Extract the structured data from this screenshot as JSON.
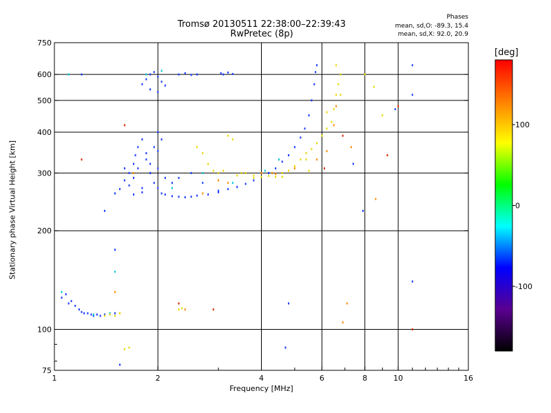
{
  "plot": {
    "title_line1": "Tromsø 20130511 22:38:00–22:39:43",
    "title_line2": "RwPretec (8p)",
    "phase_heading": "Phases",
    "phase_o": "mean, sd,O: -89.3, 15.4",
    "phase_x": "mean, sd,X:  92.0, 20.9",
    "colorbar_unit": "[deg]"
  },
  "chart_data": {
    "type": "scatter",
    "title": "Tromsø 20130511 22:38:00–22:39:43",
    "subtitle": "RwPretec (8p)",
    "xlabel": "Frequency [MHz]",
    "ylabel": "Stationary phase Virtual Height [km]",
    "x_scale": "log",
    "y_scale": "log",
    "xlim": [
      1,
      16
    ],
    "ylim": [
      75,
      750
    ],
    "x_ticks": [
      1,
      2,
      4,
      6,
      8,
      10,
      16
    ],
    "x_tick_labels": [
      "1",
      "2",
      "4",
      "6",
      "8",
      "10",
      "16"
    ],
    "y_ticks": [
      75,
      100,
      200,
      300,
      400,
      500,
      600,
      750
    ],
    "y_tick_labels": [
      "75",
      "100",
      "200",
      "300",
      "400",
      "500",
      "600",
      "750"
    ],
    "x_grid": [
      2,
      4,
      6,
      8,
      10
    ],
    "y_grid": [
      100,
      200,
      300,
      400,
      500,
      600
    ],
    "x_minor_ticks": [
      3,
      5,
      7,
      9,
      11,
      12,
      13,
      14,
      15
    ],
    "y_minor_ticks": [
      80,
      90
    ],
    "colorbar": {
      "label": "[deg]",
      "range": [
        -180,
        180
      ],
      "ticks": [
        100,
        0,
        -100
      ],
      "tick_labels": [
        "100",
        "0",
        "-100"
      ],
      "colors": [
        "#000000",
        "#5a0090",
        "#0000ff",
        "#00ffff",
        "#00ff00",
        "#ffff00",
        "#ff8000",
        "#ff0000"
      ]
    },
    "series": [
      {
        "color": "#1a3cff",
        "values": [
          [
            1.05,
            125
          ],
          [
            1.08,
            128
          ],
          [
            1.1,
            120
          ],
          [
            1.12,
            122
          ],
          [
            1.15,
            118
          ],
          [
            1.18,
            115
          ],
          [
            1.2,
            113
          ],
          [
            1.22,
            112
          ],
          [
            1.25,
            112
          ],
          [
            1.28,
            111
          ],
          [
            1.3,
            110
          ],
          [
            1.33,
            111
          ],
          [
            1.36,
            110
          ],
          [
            1.4,
            111
          ],
          [
            1.45,
            111
          ],
          [
            1.5,
            112
          ],
          [
            1.55,
            112
          ],
          [
            1.5,
            260
          ],
          [
            1.55,
            268
          ],
          [
            1.6,
            285
          ],
          [
            1.65,
            300
          ],
          [
            1.7,
            320
          ],
          [
            1.72,
            340
          ],
          [
            1.75,
            360
          ],
          [
            1.8,
            380
          ],
          [
            1.85,
            330
          ],
          [
            1.9,
            300
          ],
          [
            1.95,
            280
          ],
          [
            2.0,
            270
          ],
          [
            2.05,
            260
          ],
          [
            2.1,
            258
          ],
          [
            2.2,
            255
          ],
          [
            2.3,
            254
          ],
          [
            2.4,
            253
          ],
          [
            2.5,
            254
          ],
          [
            2.6,
            256
          ],
          [
            2.8,
            258
          ],
          [
            3.0,
            262
          ],
          [
            1.6,
            310
          ],
          [
            1.7,
            290
          ],
          [
            1.8,
            270
          ],
          [
            1.9,
            320
          ],
          [
            2.0,
            350
          ],
          [
            2.0,
            400
          ],
          [
            2.05,
            380
          ],
          [
            1.95,
            360
          ],
          [
            1.85,
            345
          ],
          [
            1.75,
            310
          ],
          [
            1.65,
            275
          ],
          [
            1.7,
            258
          ],
          [
            1.8,
            262
          ],
          [
            1.9,
            300
          ],
          [
            2.0,
            310
          ],
          [
            2.1,
            290
          ],
          [
            2.2,
            280
          ],
          [
            2.3,
            290
          ],
          [
            2.5,
            300
          ],
          [
            2.7,
            280
          ],
          [
            1.8,
            560
          ],
          [
            1.85,
            580
          ],
          [
            1.9,
            600
          ],
          [
            1.95,
            610
          ],
          [
            2.0,
            590
          ],
          [
            2.05,
            570
          ],
          [
            2.1,
            555
          ],
          [
            1.9,
            540
          ],
          [
            2.0,
            530
          ],
          [
            2.3,
            600
          ],
          [
            2.4,
            605
          ],
          [
            2.5,
            598
          ],
          [
            2.6,
            600
          ],
          [
            3.05,
            605
          ],
          [
            3.1,
            600
          ],
          [
            3.2,
            608
          ],
          [
            3.3,
            602
          ],
          [
            3.0,
            265
          ],
          [
            3.2,
            268
          ],
          [
            3.4,
            272
          ],
          [
            3.6,
            278
          ],
          [
            3.8,
            285
          ],
          [
            4.0,
            292
          ],
          [
            4.2,
            300
          ],
          [
            4.4,
            310
          ],
          [
            4.6,
            325
          ],
          [
            4.8,
            340
          ],
          [
            5.0,
            360
          ],
          [
            5.2,
            385
          ],
          [
            5.35,
            410
          ],
          [
            5.5,
            450
          ],
          [
            5.6,
            500
          ],
          [
            5.7,
            560
          ],
          [
            5.75,
            610
          ],
          [
            5.8,
            640
          ],
          [
            1.2,
            600
          ],
          [
            1.4,
            230
          ],
          [
            1.5,
            175
          ],
          [
            1.55,
            78
          ],
          [
            4.2,
            300
          ],
          [
            4.8,
            120
          ],
          [
            4.7,
            88
          ],
          [
            7.4,
            320
          ],
          [
            7.9,
            230
          ],
          [
            9.8,
            470
          ],
          [
            11.0,
            140
          ],
          [
            11.0,
            640
          ],
          [
            11.0,
            520
          ]
        ]
      },
      {
        "color": "#00c8d8",
        "values": [
          [
            1.05,
            130
          ],
          [
            1.3,
            111
          ],
          [
            1.45,
            112
          ],
          [
            2.2,
            270
          ],
          [
            2.7,
            300
          ],
          [
            3.3,
            280
          ],
          [
            4.1,
            305
          ],
          [
            4.5,
            330
          ],
          [
            1.85,
            600
          ],
          [
            2.05,
            615
          ],
          [
            1.1,
            600
          ],
          [
            1.5,
            150
          ]
        ]
      },
      {
        "color": "#e8d800",
        "values": [
          [
            1.4,
            110
          ],
          [
            1.45,
            111
          ],
          [
            1.5,
            110
          ],
          [
            1.55,
            112
          ],
          [
            2.3,
            115
          ],
          [
            2.35,
            116
          ],
          [
            1.6,
            87
          ],
          [
            1.65,
            88
          ],
          [
            2.6,
            360
          ],
          [
            2.7,
            345
          ],
          [
            2.8,
            320
          ],
          [
            2.9,
            305
          ],
          [
            3.0,
            300
          ],
          [
            3.1,
            305
          ],
          [
            3.2,
            390
          ],
          [
            3.3,
            380
          ],
          [
            3.4,
            295
          ],
          [
            3.6,
            300
          ],
          [
            3.8,
            295
          ],
          [
            4.0,
            292
          ],
          [
            4.2,
            294
          ],
          [
            4.4,
            292
          ],
          [
            4.6,
            300
          ],
          [
            4.8,
            305
          ],
          [
            5.0,
            315
          ],
          [
            5.2,
            330
          ],
          [
            5.4,
            345
          ],
          [
            5.6,
            355
          ],
          [
            5.8,
            370
          ],
          [
            6.0,
            390
          ],
          [
            6.2,
            410
          ],
          [
            6.4,
            430
          ],
          [
            6.5,
            470
          ],
          [
            6.6,
            520
          ],
          [
            6.7,
            560
          ],
          [
            6.8,
            600
          ],
          [
            6.6,
            640
          ],
          [
            3.5,
            300
          ],
          [
            3.8,
            290
          ],
          [
            4.6,
            292
          ],
          [
            5.4,
            330
          ],
          [
            6.2,
            460
          ],
          [
            8.0,
            600
          ],
          [
            8.5,
            550
          ],
          [
            9.0,
            450
          ],
          [
            5.5,
            305
          ],
          [
            6.8,
            520
          ]
        ]
      },
      {
        "color": "#ff8c00",
        "values": [
          [
            1.5,
            130
          ],
          [
            2.4,
            115
          ],
          [
            3.2,
            280
          ],
          [
            4.0,
            300
          ],
          [
            4.4,
            298
          ],
          [
            5.0,
            310
          ],
          [
            5.8,
            330
          ],
          [
            6.2,
            350
          ],
          [
            6.5,
            420
          ],
          [
            6.6,
            480
          ],
          [
            6.9,
            105
          ],
          [
            7.1,
            120
          ],
          [
            8.6,
            250
          ],
          [
            7.3,
            360
          ],
          [
            4.3,
            300
          ],
          [
            3.0,
            285
          ],
          [
            1.7,
            300
          ],
          [
            2.7,
            260
          ]
        ]
      },
      {
        "color": "#dd2a00",
        "values": [
          [
            1.2,
            330
          ],
          [
            1.6,
            420
          ],
          [
            2.3,
            120
          ],
          [
            2.9,
            115
          ],
          [
            6.1,
            310
          ],
          [
            6.9,
            390
          ],
          [
            9.3,
            340
          ],
          [
            10.0,
            480
          ],
          [
            11.0,
            100
          ]
        ]
      }
    ]
  }
}
